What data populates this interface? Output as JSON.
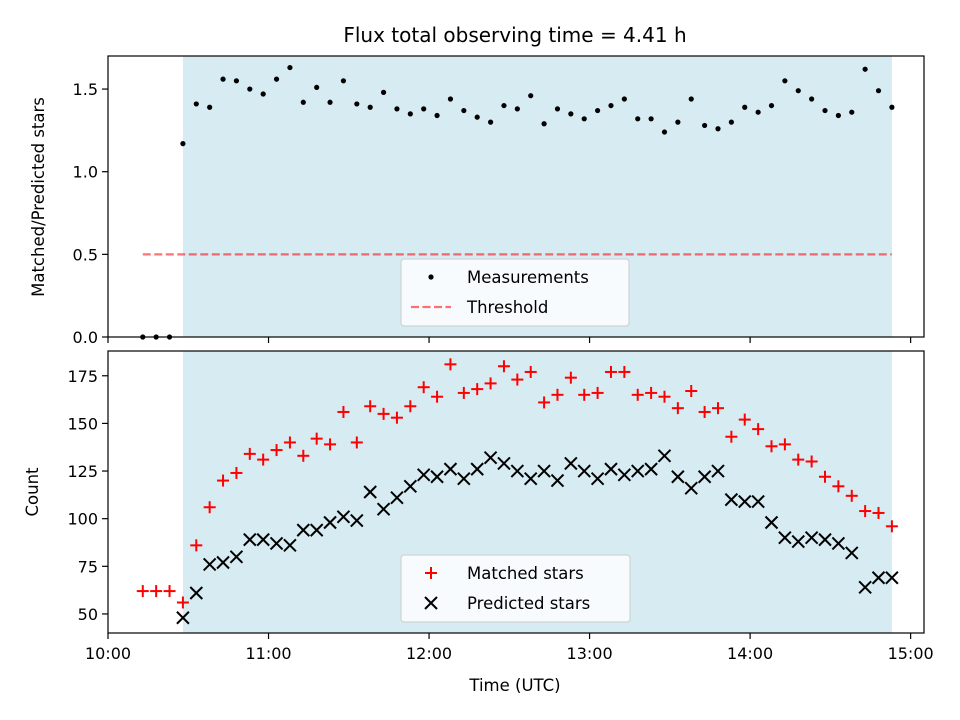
{
  "title": "Flux total observing time = 4.41 h",
  "colors": {
    "observing_window": "#add8e6",
    "measurements": "#000000",
    "threshold": "#ff0000",
    "matched": "#ff0000",
    "predicted": "#000000"
  },
  "chart_data": [
    {
      "type": "scatter",
      "ylabel": "Matched/Predicted stars",
      "xlabel": "",
      "ylim": [
        0,
        1.7
      ],
      "yticks": [
        0.0,
        0.5,
        1.0,
        1.5
      ],
      "ytick_labels": [
        "0.0",
        "0.5",
        "1.0",
        "1.5"
      ],
      "xlim": [
        "10:00",
        "15:05"
      ],
      "shaded_span": [
        "10:28",
        "14:53"
      ],
      "legend": {
        "placement": "lower center",
        "entries": [
          "Measurements",
          "Threshold"
        ]
      },
      "threshold": {
        "name": "Threshold",
        "y": 0.5,
        "x_range": [
          "10:13",
          "14:53"
        ],
        "style": "dashed"
      },
      "series": [
        {
          "name": "Measurements",
          "x": [
            "10:13",
            "10:18",
            "10:23",
            "10:28",
            "10:33",
            "10:38",
            "10:43",
            "10:48",
            "10:53",
            "10:58",
            "11:03",
            "11:08",
            "11:13",
            "11:18",
            "11:23",
            "11:28",
            "11:33",
            "11:38",
            "11:43",
            "11:48",
            "11:53",
            "11:58",
            "12:03",
            "12:08",
            "12:13",
            "12:18",
            "12:23",
            "12:28",
            "12:33",
            "12:38",
            "12:43",
            "12:48",
            "12:53",
            "12:58",
            "13:03",
            "13:08",
            "13:13",
            "13:18",
            "13:23",
            "13:28",
            "13:33",
            "13:38",
            "13:43",
            "13:48",
            "13:53",
            "13:58",
            "14:03",
            "14:08",
            "14:13",
            "14:18",
            "14:23",
            "14:28",
            "14:33",
            "14:38",
            "14:43",
            "14:48",
            "14:53"
          ],
          "y": [
            0.0,
            0.0,
            0.0,
            1.17,
            1.41,
            1.39,
            1.56,
            1.55,
            1.5,
            1.47,
            1.56,
            1.63,
            1.42,
            1.51,
            1.42,
            1.55,
            1.41,
            1.39,
            1.48,
            1.38,
            1.35,
            1.38,
            1.34,
            1.44,
            1.37,
            1.33,
            1.3,
            1.4,
            1.38,
            1.46,
            1.29,
            1.38,
            1.35,
            1.32,
            1.37,
            1.4,
            1.44,
            1.32,
            1.32,
            1.24,
            1.3,
            1.44,
            1.28,
            1.26,
            1.3,
            1.39,
            1.36,
            1.4,
            1.55,
            1.49,
            1.44,
            1.37,
            1.34,
            1.36,
            1.62,
            1.49,
            1.39
          ]
        }
      ]
    },
    {
      "type": "scatter",
      "ylabel": "Count",
      "xlabel": "Time (UTC)",
      "ylim": [
        40,
        188
      ],
      "yticks": [
        50,
        75,
        100,
        125,
        150,
        175
      ],
      "ytick_labels": [
        "50",
        "75",
        "100",
        "125",
        "150",
        "175"
      ],
      "xlim": [
        "10:00",
        "15:05"
      ],
      "xticks": [
        "10:00",
        "11:00",
        "12:00",
        "13:00",
        "14:00",
        "15:00"
      ],
      "shaded_span": [
        "10:28",
        "14:53"
      ],
      "legend": {
        "placement": "lower center",
        "entries": [
          "Matched stars",
          "Predicted stars"
        ]
      },
      "series": [
        {
          "name": "Matched stars",
          "marker": "+",
          "x": [
            "10:13",
            "10:18",
            "10:23",
            "10:28",
            "10:33",
            "10:38",
            "10:43",
            "10:48",
            "10:53",
            "10:58",
            "11:03",
            "11:08",
            "11:13",
            "11:18",
            "11:23",
            "11:28",
            "11:33",
            "11:38",
            "11:43",
            "11:48",
            "11:53",
            "11:58",
            "12:03",
            "12:08",
            "12:13",
            "12:18",
            "12:23",
            "12:28",
            "12:33",
            "12:38",
            "12:43",
            "12:48",
            "12:53",
            "12:58",
            "13:03",
            "13:08",
            "13:13",
            "13:18",
            "13:23",
            "13:28",
            "13:33",
            "13:38",
            "13:43",
            "13:48",
            "13:53",
            "13:58",
            "14:03",
            "14:08",
            "14:13",
            "14:18",
            "14:23",
            "14:28",
            "14:33",
            "14:38",
            "14:43",
            "14:48",
            "14:53"
          ],
          "y": [
            62,
            62,
            62,
            56,
            86,
            106,
            120,
            124,
            134,
            131,
            136,
            140,
            133,
            142,
            139,
            156,
            140,
            159,
            155,
            153,
            159,
            169,
            164,
            181,
            166,
            168,
            171,
            180,
            173,
            177,
            161,
            165,
            174,
            165,
            166,
            177,
            177,
            165,
            166,
            164,
            158,
            167,
            156,
            158,
            143,
            152,
            147,
            138,
            139,
            131,
            130,
            122,
            117,
            112,
            104,
            103,
            96
          ]
        },
        {
          "name": "Predicted stars",
          "marker": "x",
          "x": [
            "10:28",
            "10:33",
            "10:38",
            "10:43",
            "10:48",
            "10:53",
            "10:58",
            "11:03",
            "11:08",
            "11:13",
            "11:18",
            "11:23",
            "11:28",
            "11:33",
            "11:38",
            "11:43",
            "11:48",
            "11:53",
            "11:58",
            "12:03",
            "12:08",
            "12:13",
            "12:18",
            "12:23",
            "12:28",
            "12:33",
            "12:38",
            "12:43",
            "12:48",
            "12:53",
            "12:58",
            "13:03",
            "13:08",
            "13:13",
            "13:18",
            "13:23",
            "13:28",
            "13:33",
            "13:38",
            "13:43",
            "13:48",
            "13:53",
            "13:58",
            "14:03",
            "14:08",
            "14:13",
            "14:18",
            "14:23",
            "14:28",
            "14:33",
            "14:38",
            "14:43",
            "14:48",
            "14:53"
          ],
          "y": [
            48,
            61,
            76,
            77,
            80,
            89,
            89,
            87,
            86,
            94,
            94,
            98,
            101,
            99,
            114,
            105,
            111,
            117,
            123,
            122,
            126,
            121,
            126,
            132,
            129,
            125,
            121,
            125,
            120,
            129,
            125,
            121,
            126,
            123,
            125,
            126,
            133,
            122,
            116,
            122,
            125,
            110,
            109,
            109,
            98,
            90,
            88,
            90,
            89,
            87,
            82,
            64,
            69,
            69
          ]
        }
      ]
    }
  ]
}
